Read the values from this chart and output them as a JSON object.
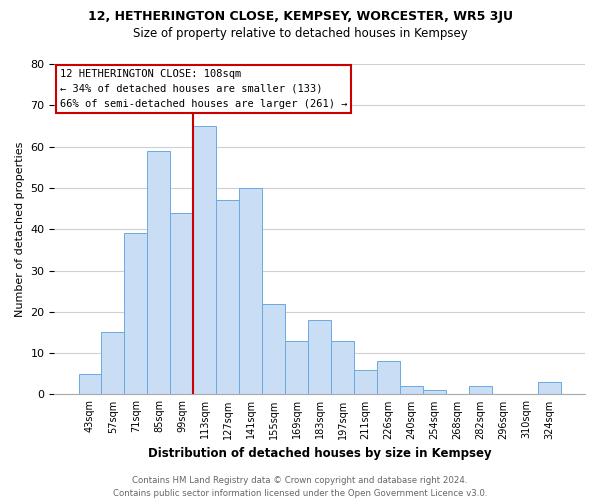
{
  "title1": "12, HETHERINGTON CLOSE, KEMPSEY, WORCESTER, WR5 3JU",
  "title2": "Size of property relative to detached houses in Kempsey",
  "xlabel": "Distribution of detached houses by size in Kempsey",
  "ylabel": "Number of detached properties",
  "bin_labels": [
    "43sqm",
    "57sqm",
    "71sqm",
    "85sqm",
    "99sqm",
    "113sqm",
    "127sqm",
    "141sqm",
    "155sqm",
    "169sqm",
    "183sqm",
    "197sqm",
    "211sqm",
    "226sqm",
    "240sqm",
    "254sqm",
    "268sqm",
    "282sqm",
    "296sqm",
    "310sqm",
    "324sqm"
  ],
  "bar_values": [
    5,
    15,
    39,
    59,
    44,
    65,
    47,
    50,
    22,
    13,
    18,
    13,
    6,
    8,
    2,
    1,
    0,
    2,
    0,
    0,
    3
  ],
  "bar_color": "#c9ddf5",
  "bar_edge_color": "#6aaae0",
  "red_line_index": 5,
  "annotation_text1": "12 HETHERINGTON CLOSE: 108sqm",
  "annotation_text2": "← 34% of detached houses are smaller (133)",
  "annotation_text3": "66% of semi-detached houses are larger (261) →",
  "annotation_box_color": "white",
  "annotation_box_edge_color": "#cc0000",
  "footer1": "Contains HM Land Registry data © Crown copyright and database right 2024.",
  "footer2": "Contains public sector information licensed under the Open Government Licence v3.0.",
  "ylim": [
    0,
    80
  ],
  "yticks": [
    0,
    10,
    20,
    30,
    40,
    50,
    60,
    70,
    80
  ],
  "background_color": "white",
  "grid_color": "#d0d0d0"
}
